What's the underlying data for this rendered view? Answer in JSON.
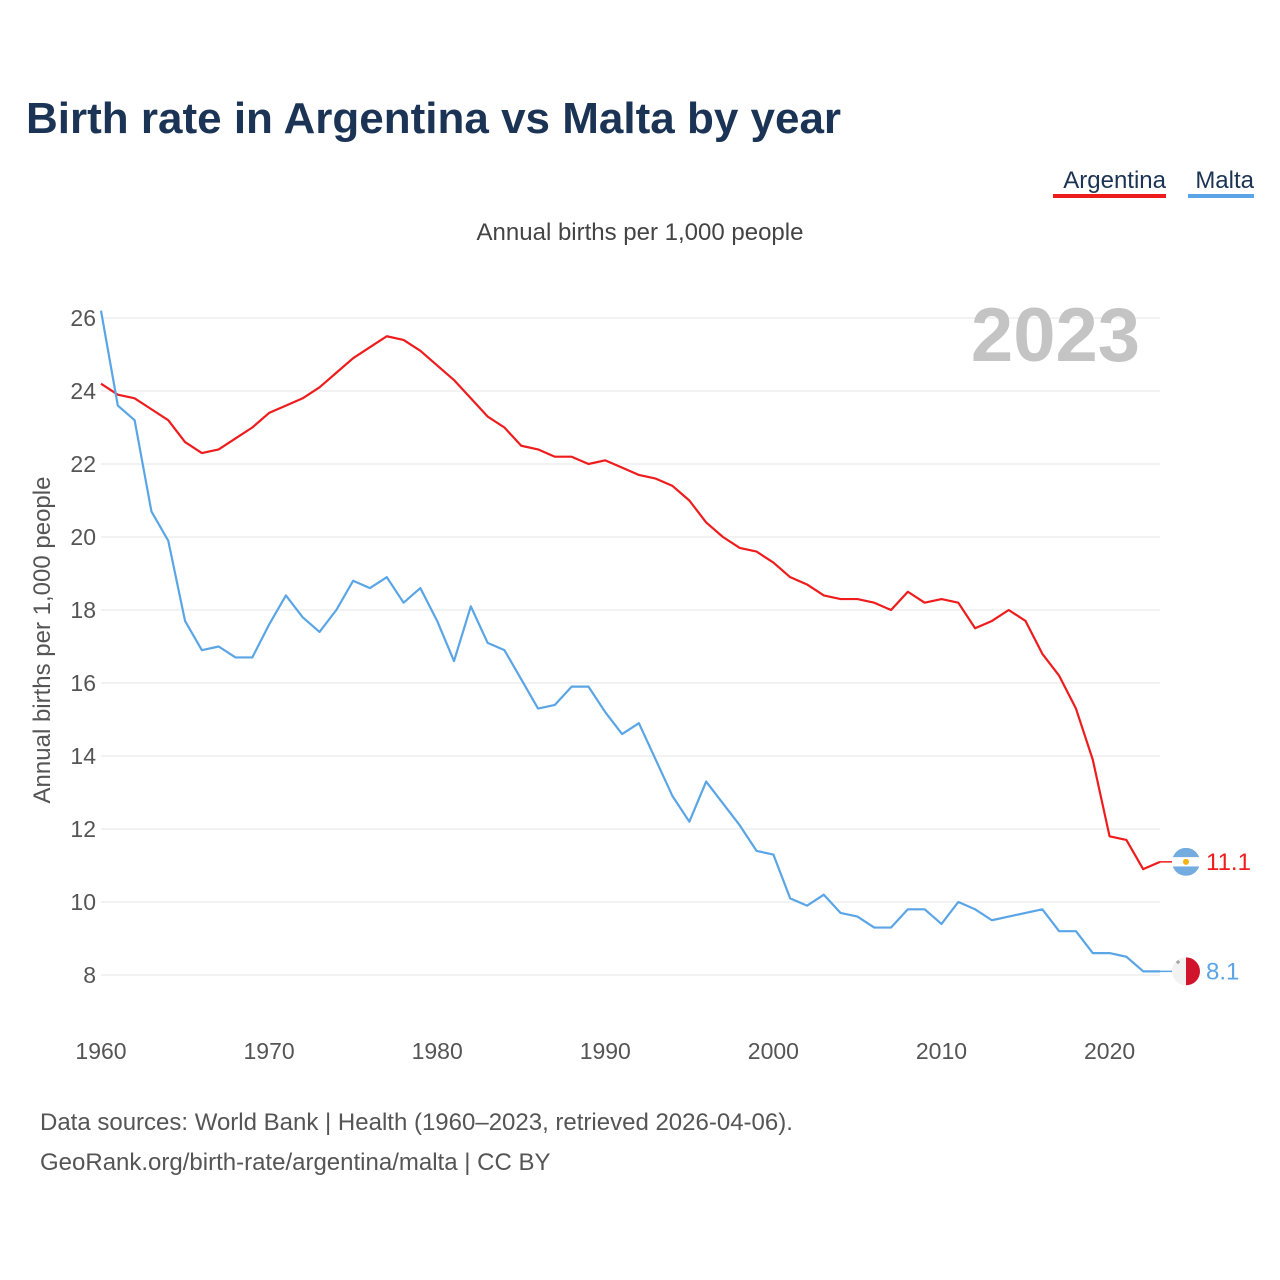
{
  "chart_data": {
    "type": "line",
    "title": "Birth rate in Argentina vs Malta by year",
    "subtitle": "Annual births per 1,000 people",
    "ylabel": "Annual births per 1,000 people",
    "xlabel": "",
    "current_year": "2023",
    "xlim": [
      1960,
      2023
    ],
    "ylim": [
      6.8,
      27
    ],
    "y_ticks": [
      8,
      10,
      12,
      14,
      16,
      18,
      20,
      22,
      24,
      26
    ],
    "x_ticks": [
      1960,
      1970,
      1980,
      1990,
      2000,
      2010,
      2020
    ],
    "grid": true,
    "legend_position": "top-right",
    "x": [
      1960,
      1961,
      1962,
      1963,
      1964,
      1965,
      1966,
      1967,
      1968,
      1969,
      1970,
      1971,
      1972,
      1973,
      1974,
      1975,
      1976,
      1977,
      1978,
      1979,
      1980,
      1981,
      1982,
      1983,
      1984,
      1985,
      1986,
      1987,
      1988,
      1989,
      1990,
      1991,
      1992,
      1993,
      1994,
      1995,
      1996,
      1997,
      1998,
      1999,
      2000,
      2001,
      2002,
      2003,
      2004,
      2005,
      2006,
      2007,
      2008,
      2009,
      2010,
      2011,
      2012,
      2013,
      2014,
      2015,
      2016,
      2017,
      2018,
      2019,
      2020,
      2021,
      2022,
      2023
    ],
    "series": [
      {
        "name": "Argentina",
        "color": "#ee1c1c",
        "end_label": "11.1",
        "flag": "argentina-flag-icon",
        "values": [
          24.2,
          23.9,
          23.8,
          23.5,
          23.2,
          22.6,
          22.3,
          22.4,
          22.7,
          23.0,
          23.4,
          23.6,
          23.8,
          24.1,
          24.5,
          24.9,
          25.2,
          25.5,
          25.4,
          25.1,
          24.7,
          24.3,
          23.8,
          23.3,
          23.0,
          22.5,
          22.4,
          22.2,
          22.2,
          22.0,
          22.1,
          21.9,
          21.7,
          21.6,
          21.4,
          21.0,
          20.4,
          20.0,
          19.7,
          19.6,
          19.3,
          18.9,
          18.7,
          18.4,
          18.3,
          18.3,
          18.2,
          18.0,
          18.5,
          18.2,
          18.3,
          18.2,
          17.5,
          17.7,
          18.0,
          17.7,
          16.8,
          16.2,
          15.3,
          13.9,
          11.8,
          11.7,
          10.9,
          11.1
        ]
      },
      {
        "name": "Malta",
        "color": "#5aa5e6",
        "end_label": "8.1",
        "flag": "malta-flag-icon",
        "values": [
          26.2,
          23.6,
          23.2,
          20.7,
          19.9,
          17.7,
          16.9,
          17.0,
          16.7,
          16.7,
          17.6,
          18.4,
          17.8,
          17.4,
          18.0,
          18.8,
          18.6,
          18.9,
          18.2,
          18.6,
          17.7,
          16.6,
          18.1,
          17.1,
          16.9,
          16.1,
          15.3,
          15.4,
          15.9,
          15.9,
          15.2,
          14.6,
          14.9,
          13.9,
          12.9,
          12.2,
          13.3,
          12.7,
          12.1,
          11.4,
          11.3,
          10.1,
          9.9,
          10.2,
          9.7,
          9.6,
          9.3,
          9.3,
          9.8,
          9.8,
          9.4,
          10.0,
          9.8,
          9.5,
          9.6,
          9.7,
          9.8,
          9.2,
          9.2,
          8.6,
          8.6,
          8.5,
          8.1,
          8.1
        ]
      }
    ]
  },
  "source": {
    "line1": "Data sources: World Bank | Health (1960–2023, retrieved 2026-04-06).",
    "line2": "GeoRank.org/birth-rate/argentina/malta | CC BY"
  }
}
